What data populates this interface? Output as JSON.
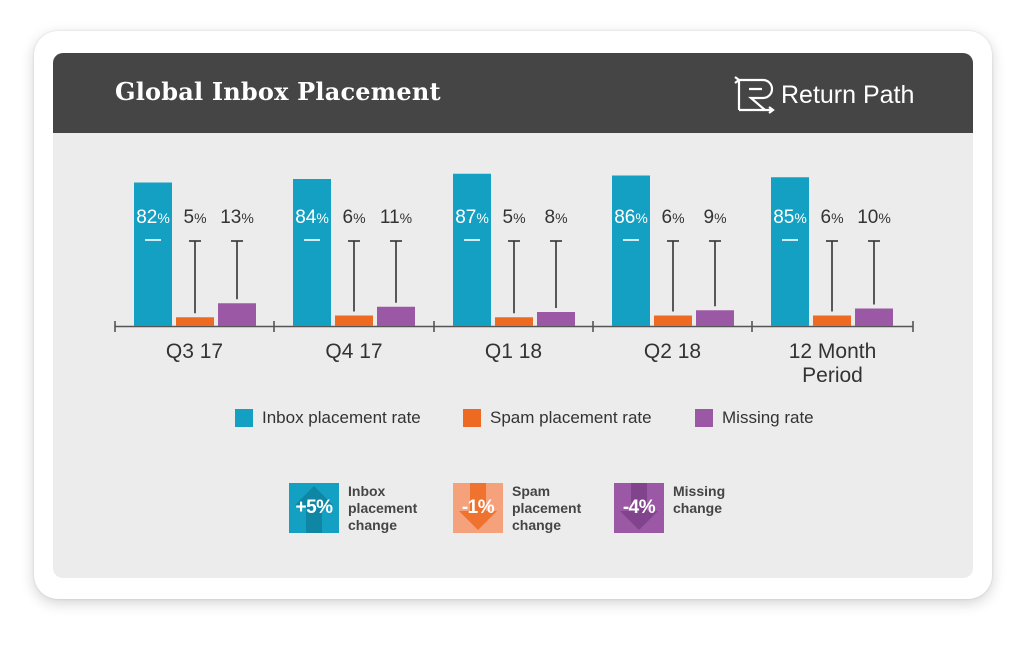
{
  "header": {
    "title": "Global Inbox Placement",
    "logo_text": "Return Path"
  },
  "colors": {
    "inbox": "#14a0c2",
    "spam": "#ee6a22",
    "missing": "#9b58a5",
    "spam_light": "#f5a27c",
    "header_bg": "#454545",
    "panel_bg": "#ececec"
  },
  "chart_data": {
    "type": "bar",
    "categories": [
      "Q3 17",
      "Q4 17",
      "Q1 18",
      "Q2 18",
      "12 Month Period"
    ],
    "series": [
      {
        "name": "Inbox placement rate",
        "values": [
          82,
          84,
          87,
          86,
          85
        ]
      },
      {
        "name": "Spam placement rate",
        "values": [
          5,
          6,
          5,
          6,
          6
        ]
      },
      {
        "name": "Missing rate",
        "values": [
          13,
          11,
          8,
          9,
          10
        ]
      }
    ],
    "value_suffix": "%",
    "ylim": [
      0,
      100
    ],
    "legend_position": "bottom"
  },
  "legend": [
    "Inbox placement rate",
    "Spam placement rate",
    "Missing rate"
  ],
  "changes": [
    {
      "value": "+5%",
      "label": "Inbox placement change",
      "label_lines": [
        "Inbox",
        "placement",
        "change"
      ],
      "direction": "up",
      "color": "#14a0c2"
    },
    {
      "value": "-1%",
      "label": "Spam placement change",
      "label_lines": [
        "Spam",
        "placement",
        "change"
      ],
      "direction": "down",
      "color": "#f5a27c"
    },
    {
      "value": "-4%",
      "label": "Missing change",
      "label_lines": [
        "Missing",
        "change"
      ],
      "direction": "down",
      "color": "#9b58a5"
    }
  ]
}
